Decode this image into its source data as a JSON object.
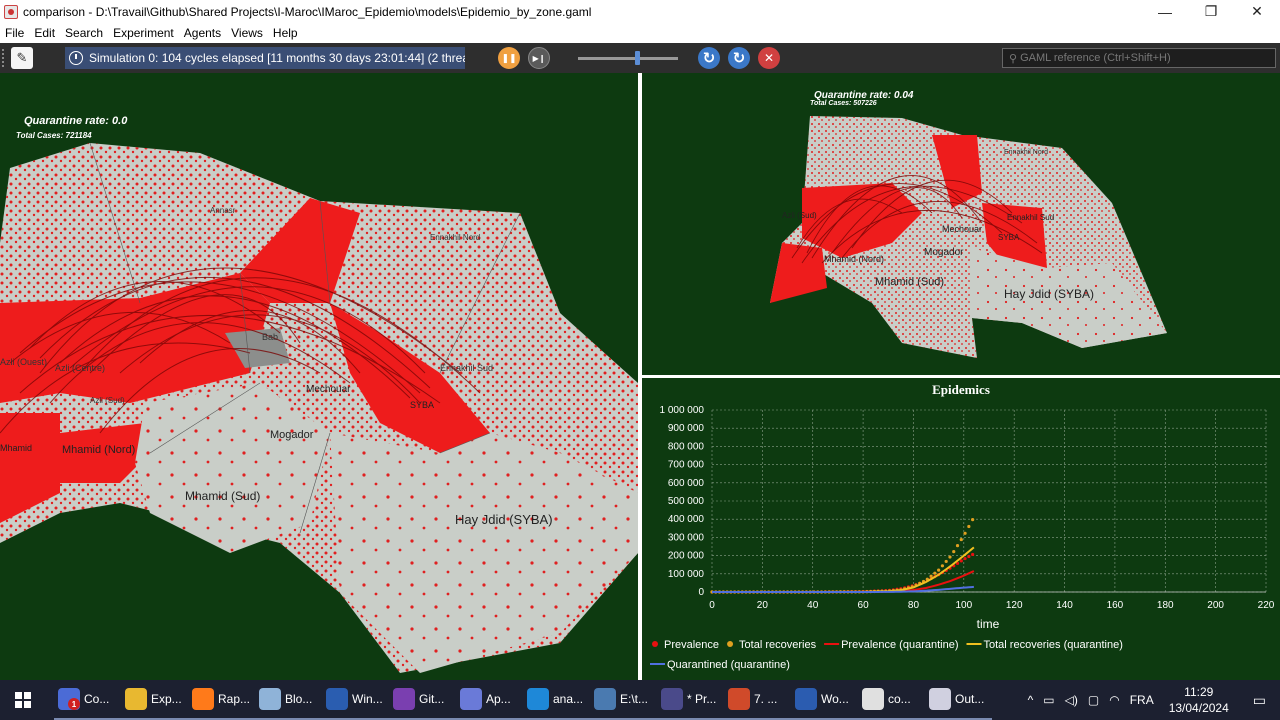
{
  "window": {
    "title": "comparison - D:\\Travail\\Github\\Shared Projects\\I-Maroc\\IMaroc_Epidemio\\models\\Epidemio_by_zone.gaml",
    "minimize": "—",
    "restore": "❐",
    "close": "✕"
  },
  "menu": [
    "File",
    "Edit",
    "Search",
    "Experiment",
    "Agents",
    "Views",
    "Help"
  ],
  "toolbar": {
    "status": "Simulation 0: 104 cycles elapsed [11 months 30 days 23:01:44] (2 threa",
    "search_placeholder": "GAML reference (Ctrl+Shift+H)",
    "pause_icon": "❚❚",
    "step_icon": "▶❙",
    "reload_icon": "↻",
    "relaunch_icon": "↻",
    "close_icon": "✕"
  },
  "left_view": {
    "quarantine_label": "Quarantine rate: 0.0",
    "cases_label": "Total Cases: 721184",
    "zones": [
      "Annasr",
      "Ennakhil Nord",
      "Bab",
      "Azli (Ouest)",
      "Azli (Centre)",
      "Azli (Sud)",
      "Ennakhil Sud",
      "Mechouar",
      "SYBA",
      "Mogador",
      "Mhamid (Nord)",
      "Mhamid (Sud)",
      "Hay Jdid (SYBA)",
      "Mhamid"
    ]
  },
  "right_view": {
    "quarantine_label": "Quarantine rate: 0.04",
    "cases_label": "Total Cases: 507226",
    "zones": [
      "Ennakhil Nord",
      "Azli (Sud)",
      "Mechouar",
      "SYBA",
      "Ennakhil Sud",
      "Mogador",
      "Mhamid (Nord)",
      "Mhamid (Sud)",
      "Hay Jdid (SYBA)"
    ]
  },
  "chart_data": {
    "type": "line",
    "title": "Epidemics",
    "xlabel": "time",
    "ylabel": "",
    "xlim": [
      0,
      220
    ],
    "ylim": [
      0,
      1000000
    ],
    "x_ticks": [
      "0",
      "20",
      "40",
      "60",
      "80",
      "100",
      "120",
      "140",
      "160",
      "180",
      "200",
      "220"
    ],
    "y_ticks": [
      "0",
      "100 000",
      "200 000",
      "300 000",
      "400 000",
      "500 000",
      "600 000",
      "700 000",
      "800 000",
      "900 000",
      "1 000 000"
    ],
    "x": [
      0,
      20,
      40,
      60,
      70,
      75,
      80,
      85,
      90,
      95,
      100,
      104
    ],
    "series": [
      {
        "name": "Prevalence",
        "color": "#e81010",
        "style": "dots",
        "values": [
          0,
          0,
          0,
          2000,
          8000,
          18000,
          35000,
          60000,
          95000,
          135000,
          180000,
          210000
        ]
      },
      {
        "name": "Total recoveries",
        "color": "#e0a020",
        "style": "dots",
        "values": [
          0,
          0,
          0,
          1000,
          5000,
          12000,
          30000,
          65000,
          120000,
          200000,
          310000,
          410000
        ]
      },
      {
        "name": "Prevalence (quarantine)",
        "color": "#e81010",
        "style": "line",
        "values": [
          0,
          0,
          0,
          500,
          2000,
          5000,
          11000,
          22000,
          40000,
          62000,
          90000,
          115000
        ]
      },
      {
        "name": "Total recoveries (quarantine)",
        "color": "#f0c020",
        "style": "line",
        "values": [
          0,
          0,
          0,
          1000,
          4000,
          10000,
          25000,
          55000,
          95000,
          145000,
          200000,
          245000
        ]
      },
      {
        "name": "Quarantined (quarantine)",
        "color": "#5070e0",
        "style": "line",
        "values": [
          0,
          0,
          0,
          0,
          500,
          1500,
          3500,
          7000,
          12000,
          18000,
          24000,
          28000
        ]
      }
    ]
  },
  "taskbar": {
    "apps": [
      {
        "label": "Co...",
        "icon": "teams-icon",
        "color": "#4b6bd6",
        "badge": "1"
      },
      {
        "label": "Exp...",
        "icon": "folder-icon",
        "color": "#e8b830"
      },
      {
        "label": "Rap...",
        "icon": "firefox-icon",
        "color": "#ff7a1a"
      },
      {
        "label": "Blo...",
        "icon": "notepad-icon",
        "color": "#8fb3d8"
      },
      {
        "label": "Win...",
        "icon": "powershell-icon",
        "color": "#2a5db0"
      },
      {
        "label": "Git...",
        "icon": "github-icon",
        "color": "#7a3fb0"
      },
      {
        "label": "Ap...",
        "icon": "pdf-icon",
        "color": "#6a7ad8"
      },
      {
        "label": "ana...",
        "icon": "vscode-icon",
        "color": "#1e88d8"
      },
      {
        "label": "E:\\t...",
        "icon": "gama-icon",
        "color": "#4a7ab0"
      },
      {
        "label": "* Pr...",
        "icon": "eclipse-icon",
        "color": "#4a4a8a"
      },
      {
        "label": "7. ...",
        "icon": "powerpoint-icon",
        "color": "#d04a2a"
      },
      {
        "label": "Wo...",
        "icon": "word-icon",
        "color": "#2b5cb0"
      },
      {
        "label": "co...",
        "icon": "chrome-icon",
        "color": "#e0e0e0"
      },
      {
        "label": "Out...",
        "icon": "outlook-icon",
        "color": "#d0d0e0"
      }
    ],
    "language": "FRA",
    "time": "11:29",
    "date": "13/04/2024"
  }
}
